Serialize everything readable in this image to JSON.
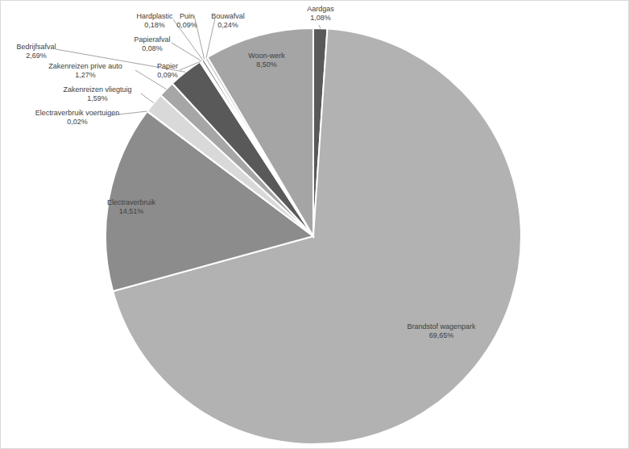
{
  "chart_data": {
    "type": "pie",
    "categories": [
      "Aardgas",
      "Brandstof wagenpark",
      "Electraverbruik",
      "Electraverbruik voertuigen",
      "Zakenreizen vliegtuig",
      "Zakenreizen prive auto",
      "Bedrijfsafval",
      "Papier",
      "Papierafval",
      "Hardplastic",
      "Puin",
      "Bouwafval",
      "Woon-werk"
    ],
    "values": [
      1.08,
      69.65,
      14.51,
      0.02,
      1.59,
      1.27,
      2.69,
      0.09,
      0.08,
      0.18,
      0.09,
      0.24,
      8.5
    ],
    "value_labels": [
      "1,08%",
      "69,65%",
      "14,51%",
      "0,02%",
      "1,59%",
      "1,27%",
      "2,69%",
      "0,09%",
      "0,08%",
      "0,18%",
      "0,09%",
      "0,24%",
      "8,50%"
    ],
    "colors": [
      "#595959",
      "#b2b2b2",
      "#8c8c8c",
      "#7f7f7f",
      "#d9d9d9",
      "#a6a6a6",
      "#595959",
      "#bfbfbf",
      "#7f7f7f",
      "#404040",
      "#a6a6a6",
      "#d0d0d0",
      "#a5a5a5"
    ],
    "data_labels": true
  }
}
